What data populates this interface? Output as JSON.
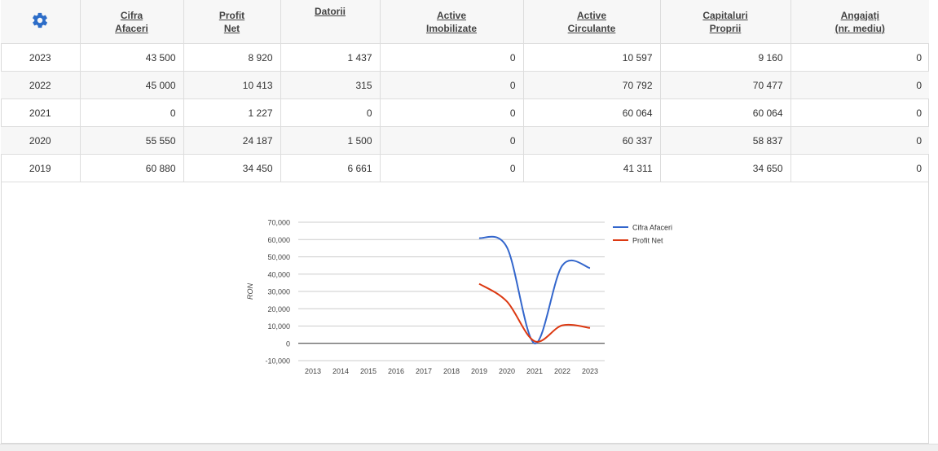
{
  "table": {
    "settings_icon": "gear-icon",
    "accent_color": "#2d6dc8",
    "columns": [
      {
        "line1": "Cifra",
        "line2": "Afaceri"
      },
      {
        "line1": "Profit",
        "line2": "Net"
      },
      {
        "line1": "Datorii",
        "line2": ""
      },
      {
        "line1": "Active",
        "line2": "Imobilizate"
      },
      {
        "line1": "Active",
        "line2": "Circulante"
      },
      {
        "line1": "Capitaluri",
        "line2": "Proprii"
      },
      {
        "line1": "Angajați",
        "line2": "(nr. mediu)"
      }
    ],
    "rows": [
      {
        "year": "2023",
        "cells": [
          "43 500",
          "8 920",
          "1 437",
          "0",
          "10 597",
          "9 160",
          "0"
        ]
      },
      {
        "year": "2022",
        "cells": [
          "45 000",
          "10 413",
          "315",
          "0",
          "70 792",
          "70 477",
          "0"
        ]
      },
      {
        "year": "2021",
        "cells": [
          "0",
          "1 227",
          "0",
          "0",
          "60 064",
          "60 064",
          "0"
        ]
      },
      {
        "year": "2020",
        "cells": [
          "55 550",
          "24 187",
          "1 500",
          "0",
          "60 337",
          "58 837",
          "0"
        ]
      },
      {
        "year": "2019",
        "cells": [
          "60 880",
          "34 450",
          "6 661",
          "0",
          "41 311",
          "34 650",
          "0"
        ]
      }
    ]
  },
  "chart_data": {
    "type": "line",
    "ylabel": "RON",
    "xlabel": "",
    "title": "",
    "ylim": [
      -10000,
      70000
    ],
    "yticks": [
      -10000,
      0,
      10000,
      20000,
      30000,
      40000,
      50000,
      60000,
      70000
    ],
    "ytick_labels": [
      "-10,000",
      "0",
      "10,000",
      "20,000",
      "30,000",
      "40,000",
      "50,000",
      "60,000",
      "70,000"
    ],
    "categories": [
      "2013",
      "2014",
      "2015",
      "2016",
      "2017",
      "2018",
      "2019",
      "2020",
      "2021",
      "2022",
      "2023"
    ],
    "series": [
      {
        "name": "Cifra Afaceri",
        "color": "#3366cc",
        "values": [
          null,
          null,
          null,
          null,
          null,
          null,
          60880,
          55550,
          0,
          45000,
          43500
        ]
      },
      {
        "name": "Profit Net",
        "color": "#dc3912",
        "values": [
          null,
          null,
          null,
          null,
          null,
          null,
          34450,
          24187,
          1227,
          10413,
          8920
        ]
      }
    ],
    "grid": true,
    "legend_position": "right"
  }
}
